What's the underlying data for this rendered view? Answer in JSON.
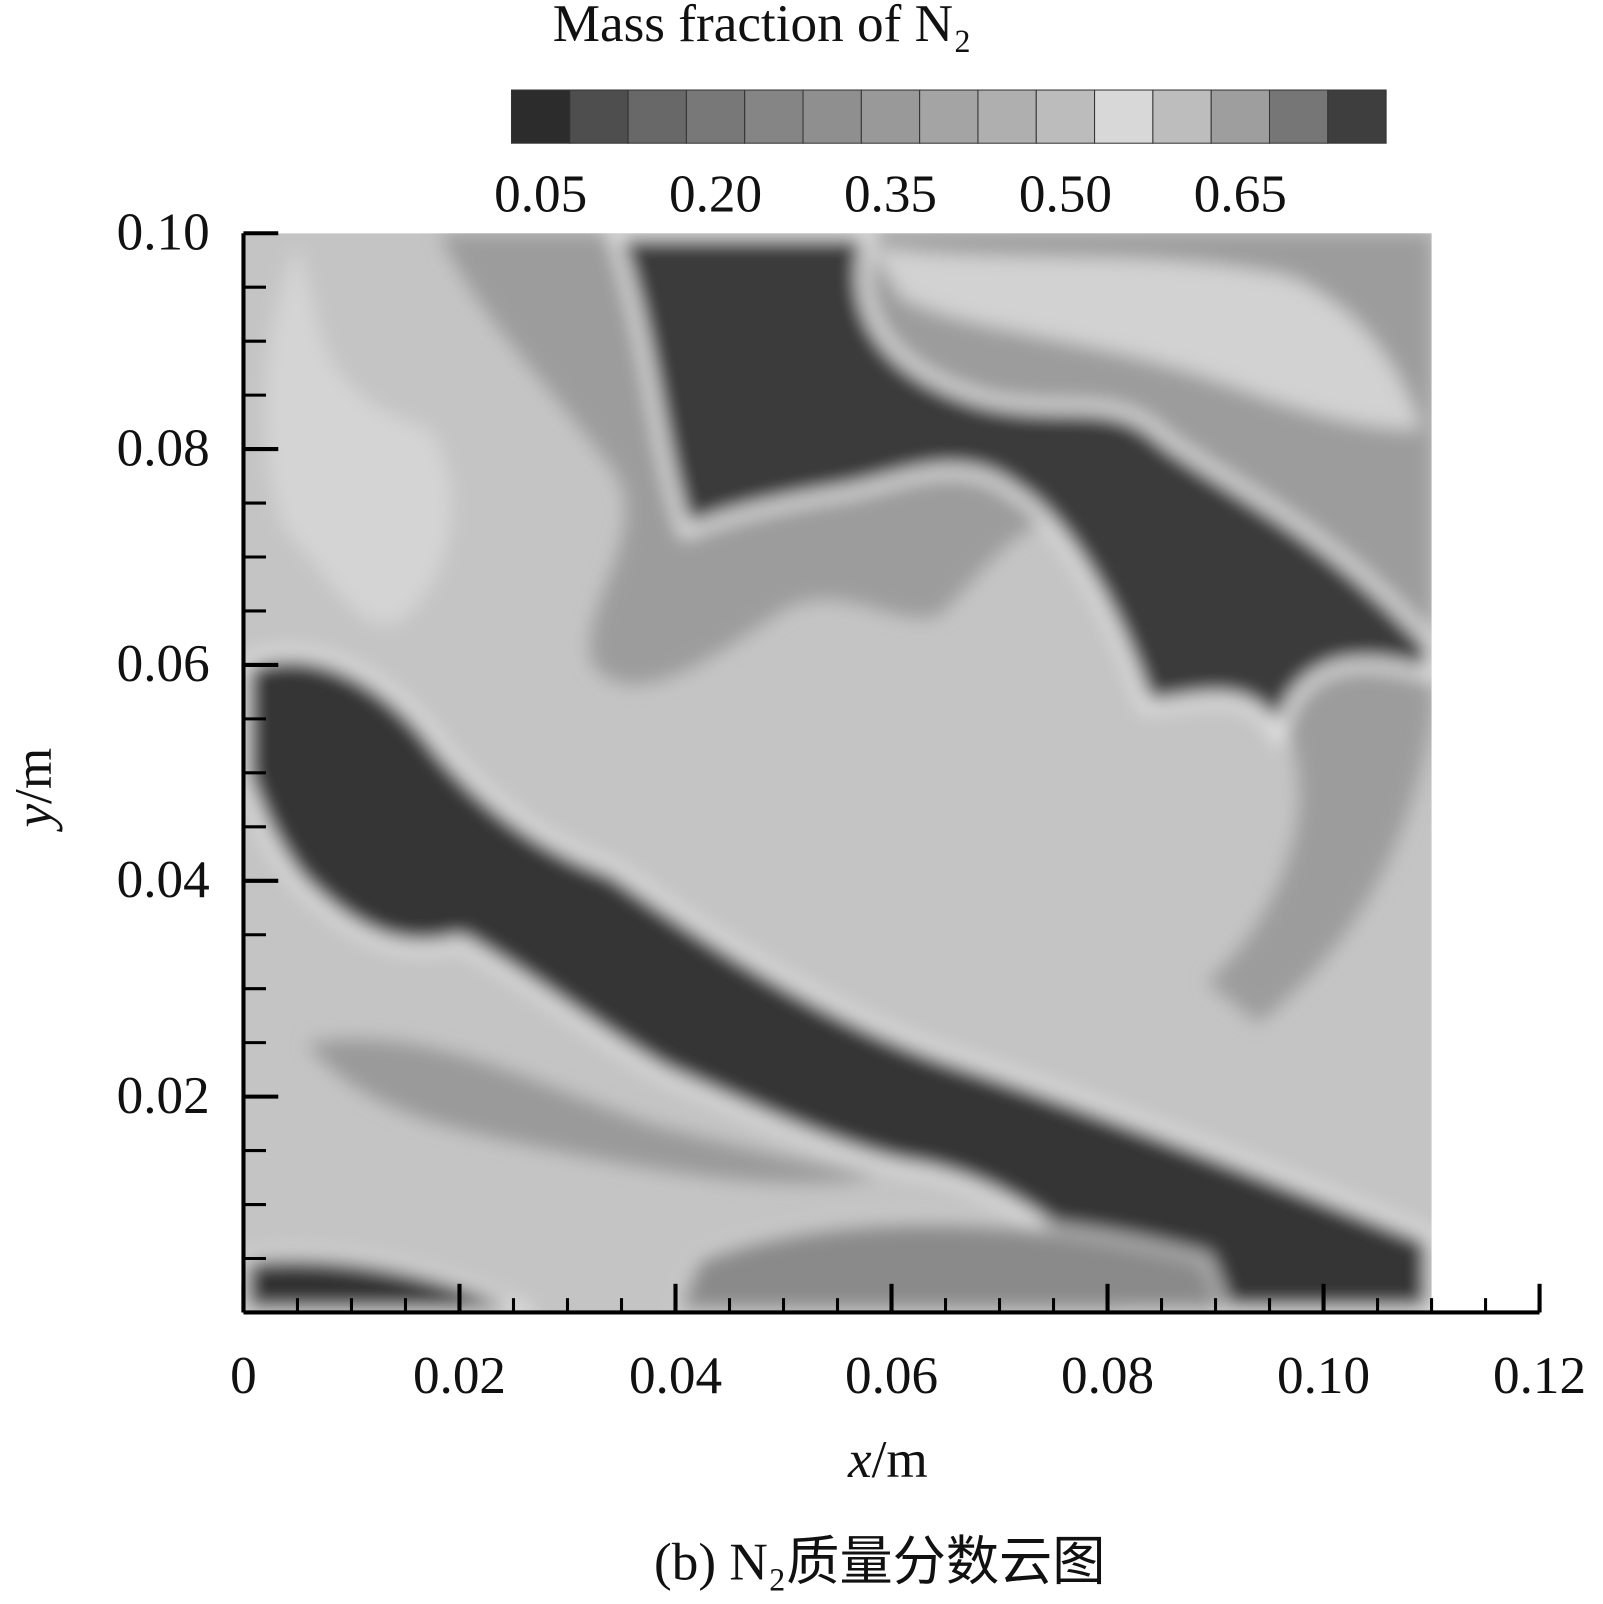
{
  "chart_data": {
    "type": "contour",
    "title": "Mass fraction of N₂",
    "x_label": "x/m",
    "y_label": "y/m",
    "caption": "(b) N₂质量分数云图",
    "xlim": [
      0,
      0.12
    ],
    "xticks": [
      0,
      0.02,
      0.04,
      0.06,
      0.08,
      {
        "value": 0.1,
        "label": "0.10"
      },
      0.12
    ],
    "ylim": [
      0,
      0.1
    ],
    "yticks": [
      0.02,
      0.04,
      0.06,
      0.08,
      {
        "value": 0.1,
        "label": "0.10"
      }
    ],
    "field_xlim": [
      0,
      0.11
    ],
    "colorbar": {
      "levels": [
        0.025,
        0.075,
        0.125,
        0.175,
        0.225,
        0.275,
        0.325,
        0.375,
        0.425,
        0.475,
        0.525,
        0.575,
        0.625,
        0.675,
        0.725,
        0.775
      ],
      "colors": [
        "#2c2c2c",
        "#4e4e4e",
        "#686868",
        "#787878",
        "#858585",
        "#8f8f8f",
        "#999999",
        "#a4a4a4",
        "#afafaf",
        "#bcbcbc",
        "#d8d8d8",
        "#bdbdbd",
        "#9e9e9e",
        "#767676",
        "#3e3e3e"
      ],
      "ticks": [
        0.05,
        {
          "value": 0.2,
          "label": "0.20"
        },
        0.35,
        {
          "value": 0.5,
          "label": "0.50"
        },
        0.65
      ]
    }
  }
}
